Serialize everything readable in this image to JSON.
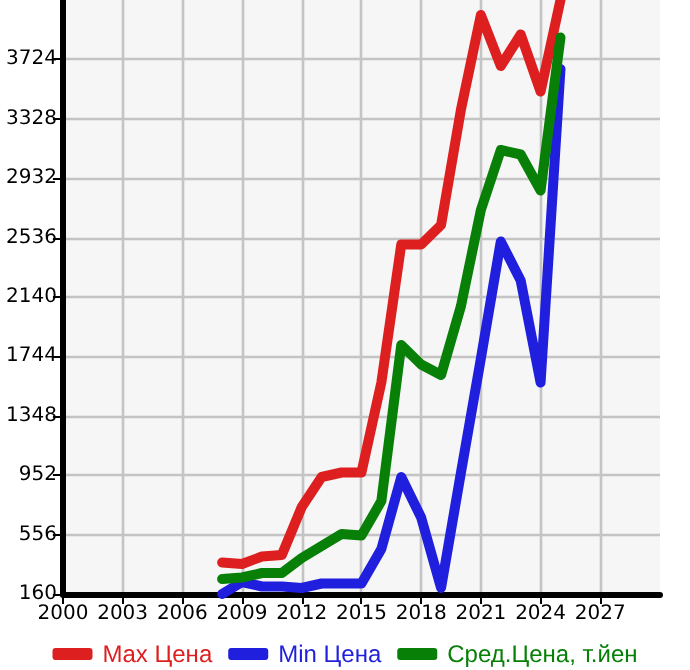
{
  "chart_data": {
    "type": "line",
    "x": [
      2008,
      2009,
      2010,
      2011,
      2012,
      2013,
      2014,
      2015,
      2016,
      2017,
      2018,
      2019,
      2020,
      2021,
      2022,
      2023,
      2024,
      2025
    ],
    "series": [
      {
        "name": "Max Цена",
        "color": "#dd1f1f",
        "values": [
          370,
          360,
          410,
          420,
          740,
          940,
          970,
          970,
          1570,
          2490,
          2490,
          2620,
          3390,
          4020,
          3680,
          3890,
          3510,
          4120
        ]
      },
      {
        "name": "Min Цена",
        "color": "#1f1fdd",
        "values": [
          160,
          240,
          210,
          210,
          200,
          230,
          230,
          230,
          460,
          940,
          670,
          200,
          970,
          1730,
          2510,
          2250,
          1570,
          3660
        ]
      },
      {
        "name": "Сред.Цена, т.йен",
        "color": "#088008",
        "values": [
          260,
          270,
          300,
          300,
          400,
          480,
          560,
          550,
          780,
          1820,
          1690,
          1620,
          2080,
          2720,
          3120,
          3090,
          2850,
          3870
        ]
      }
    ],
    "xlim": [
      2000,
      2030
    ],
    "xticks": [
      2000,
      2003,
      2006,
      2009,
      2012,
      2015,
      2018,
      2021,
      2024,
      2027
    ],
    "ylim": [
      160,
      4120
    ],
    "yticks": [
      160,
      556,
      952,
      1348,
      1744,
      2140,
      2536,
      2932,
      3328,
      3724
    ],
    "grid": true,
    "legend": "bottom",
    "marker": "none",
    "line_style": "solid"
  }
}
